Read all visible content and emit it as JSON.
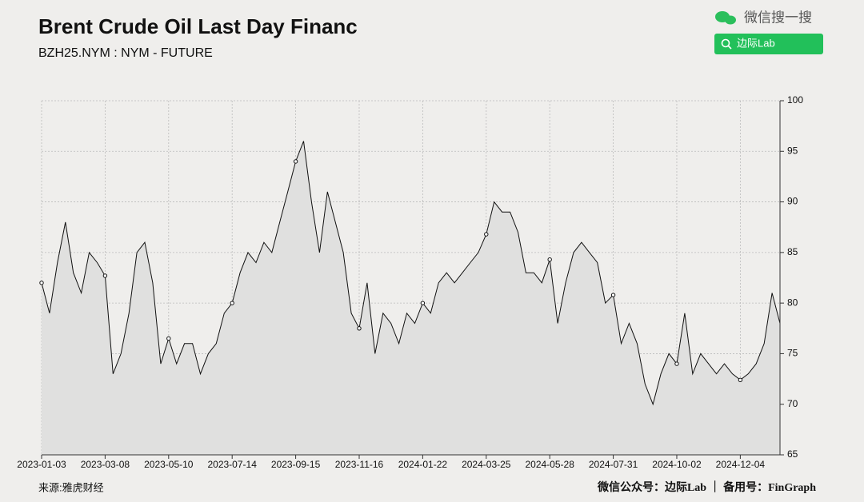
{
  "chart_data": {
    "type": "line",
    "title": "Brent Crude Oil Last Day Financ",
    "subtitle": "BZH25.NYM : NYM - FUTURE",
    "categories": [
      "2023-01-03",
      null,
      null,
      null,
      null,
      null,
      null,
      null,
      "2023-03-08",
      null,
      null,
      null,
      null,
      null,
      null,
      null,
      "2023-05-10",
      null,
      null,
      null,
      null,
      null,
      null,
      null,
      "2023-07-14",
      null,
      null,
      null,
      null,
      null,
      null,
      null,
      "2023-09-15",
      null,
      null,
      null,
      null,
      null,
      null,
      null,
      "2023-11-16",
      null,
      null,
      null,
      null,
      null,
      null,
      null,
      "2024-01-22",
      null,
      null,
      null,
      null,
      null,
      null,
      null,
      "2024-03-25",
      null,
      null,
      null,
      null,
      null,
      null,
      null,
      "2024-05-28",
      null,
      null,
      null,
      null,
      null,
      null,
      null,
      "2024-07-31",
      null,
      null,
      null,
      null,
      null,
      null,
      null,
      "2024-10-02",
      null,
      null,
      null,
      null,
      null,
      null,
      null,
      "2024-12-04",
      null,
      null,
      null,
      null,
      null
    ],
    "values": [
      82,
      79,
      84,
      88,
      83,
      81,
      85,
      84,
      82.7,
      73,
      75,
      79,
      85,
      86,
      82,
      74,
      76.5,
      74,
      76,
      76,
      73,
      75,
      76,
      79,
      80,
      83,
      85,
      84,
      86,
      85,
      88,
      91,
      94,
      96,
      90,
      85,
      91,
      88,
      85,
      79,
      77.5,
      82,
      75,
      79,
      78,
      76,
      79,
      78,
      80,
      79,
      82,
      83,
      82,
      83,
      84,
      85,
      86.8,
      90,
      89,
      89,
      87,
      83,
      83,
      82,
      84.3,
      78,
      82,
      85,
      86,
      85,
      84,
      80,
      80.8,
      76,
      78,
      76,
      72,
      70,
      73,
      75,
      74,
      79,
      73,
      75,
      74,
      73,
      74,
      73,
      72.4,
      73,
      74,
      76,
      81,
      78
    ],
    "color": "#111111",
    "area_color": "#e0e0df",
    "ylim": [
      65,
      100
    ],
    "yticks": [
      65,
      70,
      75,
      80,
      85,
      90,
      95,
      100
    ],
    "grid": true
  },
  "search_label": "微信搜一搜",
  "search_button": "边际Lab",
  "source": "来源:雅虎财经",
  "credit": "微信公众号：边际Lab ｜ 备用号：FinGraph"
}
